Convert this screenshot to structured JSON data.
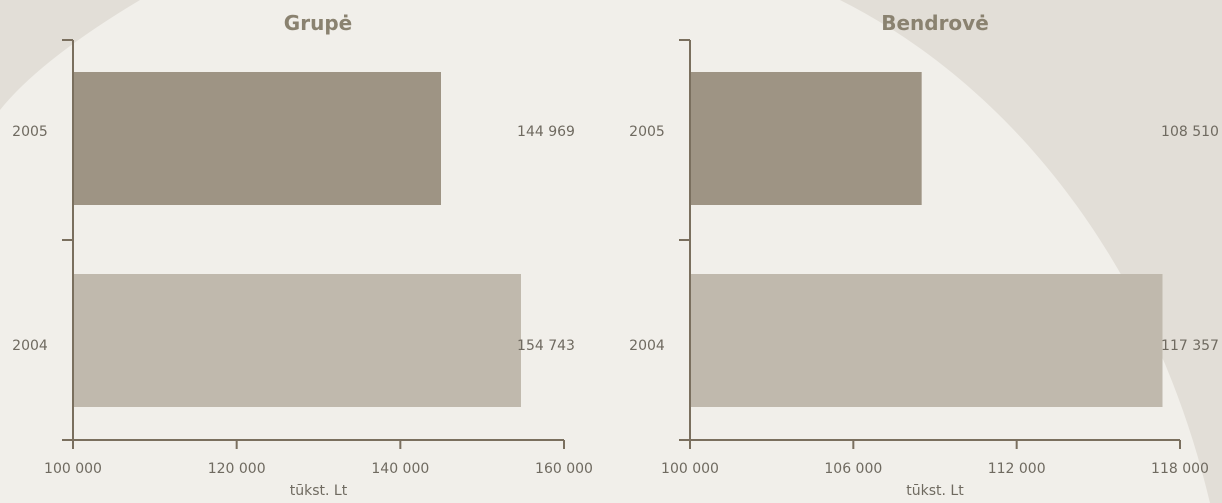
{
  "chart_data": [
    {
      "type": "bar",
      "title": "Grupė",
      "categories": [
        "2005",
        "2004"
      ],
      "values": [
        144969,
        154743
      ],
      "value_labels": [
        "144 969",
        "154 743"
      ],
      "xlabel": "tūkst. Lt",
      "xlim": [
        100000,
        160000
      ],
      "xticks": [
        100000,
        120000,
        140000,
        160000
      ],
      "xtick_labels": [
        "100 000",
        "120 000",
        "140 000",
        "160 000"
      ],
      "orientation": "horizontal",
      "grid": false,
      "colors": [
        "#9e9484",
        "#c0b9ad"
      ]
    },
    {
      "type": "bar",
      "title": "Bendrovė",
      "categories": [
        "2005",
        "2004"
      ],
      "values": [
        108510,
        117357
      ],
      "value_labels": [
        "108 510",
        "117 357"
      ],
      "xlabel": "tūkst. Lt",
      "xlim": [
        100000,
        118000
      ],
      "xticks": [
        100000,
        106000,
        112000,
        118000
      ],
      "xtick_labels": [
        "100 000",
        "106 000",
        "112 000",
        "118 000"
      ],
      "orientation": "horizontal",
      "grid": false,
      "colors": [
        "#9e9484",
        "#c0b9ad"
      ]
    }
  ],
  "theme": {
    "background": "#f1efea",
    "swoosh": "#e2ded7",
    "axis": "#7a6f5e",
    "title_color": "#8a8270"
  }
}
